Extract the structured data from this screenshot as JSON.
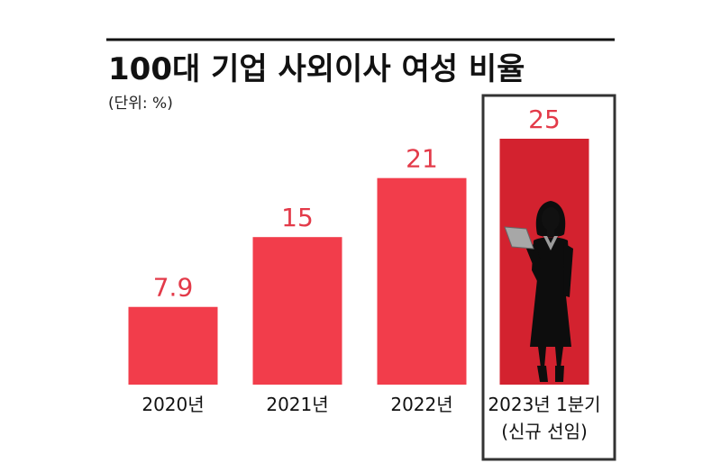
{
  "chart_data": {
    "type": "bar",
    "title": "100대 기업 사외이사 여성 비율",
    "unit_label": "(단위: %)",
    "categories": [
      [
        "2020년"
      ],
      [
        "2021년"
      ],
      [
        "2022년"
      ],
      [
        "2023년 1분기",
        "(신규 선임)"
      ]
    ],
    "values": [
      7.9,
      15,
      21,
      25
    ],
    "value_labels": [
      "7.9",
      "15",
      "21",
      "25"
    ],
    "ylim": [
      0,
      25
    ],
    "grid": false,
    "highlight_index": 3,
    "colors": {
      "bar": "#f23d4b",
      "bar_highlight": "#d3222f",
      "value_text": "#e33a49",
      "rule": "#111111",
      "frame": "#333333",
      "silhouette": "#0d0d0d"
    },
    "icon": "businesswoman-silhouette-icon"
  }
}
